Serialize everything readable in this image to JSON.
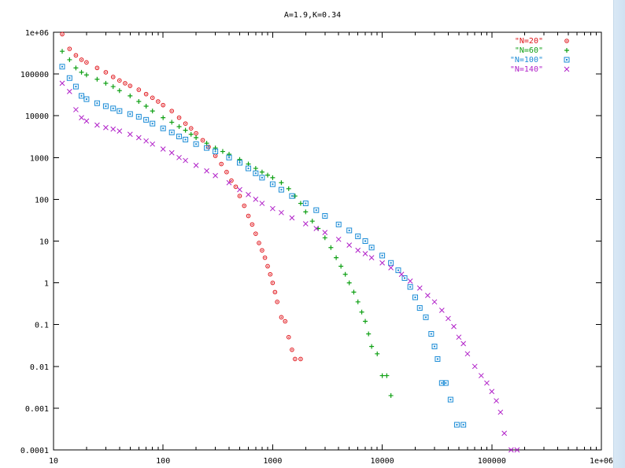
{
  "chart_data": {
    "type": "scatter",
    "title": "A=1.9,K=0.34",
    "xlabel": "",
    "ylabel": "",
    "xscale": "log",
    "yscale": "log",
    "xlim": [
      10,
      1000000
    ],
    "ylim": [
      0.0001,
      1000000
    ],
    "x_ticks": [
      {
        "value": 10,
        "label": "10"
      },
      {
        "value": 100,
        "label": "100"
      },
      {
        "value": 1000,
        "label": "1000"
      },
      {
        "value": 10000,
        "label": "10000"
      },
      {
        "value": 100000,
        "label": "100000"
      },
      {
        "value": 1000000,
        "label": "1e+06"
      }
    ],
    "y_ticks": [
      {
        "value": 1000000,
        "label": "1e+06"
      },
      {
        "value": 100000,
        "label": "100000"
      },
      {
        "value": 10000,
        "label": "10000"
      },
      {
        "value": 1000,
        "label": "1000"
      },
      {
        "value": 100,
        "label": "100"
      },
      {
        "value": 10,
        "label": "10"
      },
      {
        "value": 1,
        "label": "1"
      },
      {
        "value": 0.1,
        "label": "0.1"
      },
      {
        "value": 0.01,
        "label": "0.01"
      },
      {
        "value": 0.001,
        "label": "0.001"
      },
      {
        "value": 0.0001,
        "label": "0.0001"
      }
    ],
    "grid": false,
    "legend_position": "top-right",
    "series": [
      {
        "name": "\"N=20\"",
        "marker": "diamond",
        "color": "#e0141a",
        "points": [
          [
            12,
            900000
          ],
          [
            14,
            400000
          ],
          [
            16,
            280000
          ],
          [
            18,
            220000
          ],
          [
            20,
            190000
          ],
          [
            25,
            140000
          ],
          [
            30,
            110000
          ],
          [
            35,
            85000
          ],
          [
            40,
            70000
          ],
          [
            45,
            60000
          ],
          [
            50,
            52000
          ],
          [
            60,
            42000
          ],
          [
            70,
            33000
          ],
          [
            80,
            27000
          ],
          [
            90,
            22000
          ],
          [
            100,
            18000
          ],
          [
            120,
            13000
          ],
          [
            140,
            9000
          ],
          [
            160,
            6500
          ],
          [
            180,
            5000
          ],
          [
            200,
            3800
          ],
          [
            230,
            2600
          ],
          [
            260,
            1800
          ],
          [
            300,
            1100
          ],
          [
            340,
            700
          ],
          [
            380,
            450
          ],
          [
            420,
            280
          ],
          [
            460,
            200
          ],
          [
            500,
            120
          ],
          [
            550,
            70
          ],
          [
            600,
            40
          ],
          [
            650,
            25
          ],
          [
            700,
            15
          ],
          [
            750,
            9
          ],
          [
            800,
            6
          ],
          [
            850,
            4
          ],
          [
            900,
            2.5
          ],
          [
            950,
            1.6
          ],
          [
            1000,
            1
          ],
          [
            1050,
            0.6
          ],
          [
            1100,
            0.35
          ],
          [
            1200,
            0.15
          ],
          [
            1300,
            0.12
          ],
          [
            1400,
            0.05
          ],
          [
            1500,
            0.025
          ],
          [
            1600,
            0.015
          ],
          [
            1800,
            0.015
          ]
        ]
      },
      {
        "name": "\"N=60\"",
        "marker": "plus",
        "color": "#0fa014",
        "points": [
          [
            12,
            350000
          ],
          [
            14,
            220000
          ],
          [
            16,
            140000
          ],
          [
            18,
            110000
          ],
          [
            20,
            95000
          ],
          [
            25,
            75000
          ],
          [
            30,
            60000
          ],
          [
            35,
            50000
          ],
          [
            40,
            40000
          ],
          [
            50,
            30000
          ],
          [
            60,
            22000
          ],
          [
            70,
            17000
          ],
          [
            80,
            13000
          ],
          [
            100,
            9000
          ],
          [
            120,
            7000
          ],
          [
            140,
            5500
          ],
          [
            160,
            4500
          ],
          [
            180,
            3600
          ],
          [
            200,
            3000
          ],
          [
            250,
            2200
          ],
          [
            300,
            1700
          ],
          [
            350,
            1400
          ],
          [
            400,
            1200
          ],
          [
            500,
            900
          ],
          [
            600,
            700
          ],
          [
            700,
            550
          ],
          [
            800,
            450
          ],
          [
            900,
            380
          ],
          [
            1000,
            330
          ],
          [
            1200,
            250
          ],
          [
            1400,
            180
          ],
          [
            1600,
            120
          ],
          [
            1800,
            80
          ],
          [
            2000,
            50
          ],
          [
            2300,
            30
          ],
          [
            2600,
            20
          ],
          [
            3000,
            12
          ],
          [
            3400,
            7
          ],
          [
            3800,
            4
          ],
          [
            4200,
            2.5
          ],
          [
            4600,
            1.6
          ],
          [
            5000,
            1
          ],
          [
            5500,
            0.6
          ],
          [
            6000,
            0.35
          ],
          [
            6500,
            0.2
          ],
          [
            7000,
            0.12
          ],
          [
            7500,
            0.06
          ],
          [
            8000,
            0.03
          ],
          [
            9000,
            0.02
          ],
          [
            10000,
            0.006
          ],
          [
            11000,
            0.006
          ],
          [
            12000,
            0.002
          ]
        ]
      },
      {
        "name": "\"N=100\"",
        "marker": "square",
        "color": "#1a8bd6",
        "points": [
          [
            12,
            150000
          ],
          [
            14,
            80000
          ],
          [
            16,
            50000
          ],
          [
            18,
            30000
          ],
          [
            20,
            25000
          ],
          [
            25,
            20000
          ],
          [
            30,
            17000
          ],
          [
            35,
            15000
          ],
          [
            40,
            13000
          ],
          [
            50,
            11000
          ],
          [
            60,
            9500
          ],
          [
            70,
            8000
          ],
          [
            80,
            6500
          ],
          [
            100,
            5000
          ],
          [
            120,
            4000
          ],
          [
            140,
            3200
          ],
          [
            160,
            2700
          ],
          [
            200,
            2100
          ],
          [
            250,
            1700
          ],
          [
            300,
            1400
          ],
          [
            400,
            1000
          ],
          [
            500,
            750
          ],
          [
            600,
            550
          ],
          [
            700,
            420
          ],
          [
            800,
            330
          ],
          [
            1000,
            230
          ],
          [
            1200,
            170
          ],
          [
            1500,
            120
          ],
          [
            2000,
            80
          ],
          [
            2500,
            55
          ],
          [
            3000,
            40
          ],
          [
            4000,
            25
          ],
          [
            5000,
            18
          ],
          [
            6000,
            13
          ],
          [
            7000,
            10
          ],
          [
            8000,
            7
          ],
          [
            10000,
            4.5
          ],
          [
            12000,
            3
          ],
          [
            14000,
            2
          ],
          [
            16000,
            1.3
          ],
          [
            18000,
            0.8
          ],
          [
            20000,
            0.45
          ],
          [
            22000,
            0.25
          ],
          [
            25000,
            0.15
          ],
          [
            28000,
            0.06
          ],
          [
            30000,
            0.03
          ],
          [
            32000,
            0.015
          ],
          [
            35000,
            0.004
          ],
          [
            38000,
            0.004
          ],
          [
            42000,
            0.0016
          ],
          [
            48000,
            0.0004
          ],
          [
            55000,
            0.0004
          ]
        ]
      },
      {
        "name": "\"N=140\"",
        "marker": "x",
        "color": "#b01fc8",
        "points": [
          [
            12,
            60000
          ],
          [
            14,
            38000
          ],
          [
            16,
            14000
          ],
          [
            18,
            9000
          ],
          [
            20,
            7500
          ],
          [
            25,
            6000
          ],
          [
            30,
            5200
          ],
          [
            35,
            4800
          ],
          [
            40,
            4300
          ],
          [
            50,
            3600
          ],
          [
            60,
            3000
          ],
          [
            70,
            2500
          ],
          [
            80,
            2100
          ],
          [
            100,
            1600
          ],
          [
            120,
            1300
          ],
          [
            140,
            1000
          ],
          [
            160,
            850
          ],
          [
            200,
            650
          ],
          [
            250,
            480
          ],
          [
            300,
            370
          ],
          [
            400,
            250
          ],
          [
            500,
            170
          ],
          [
            600,
            130
          ],
          [
            700,
            100
          ],
          [
            800,
            80
          ],
          [
            1000,
            60
          ],
          [
            1200,
            48
          ],
          [
            1500,
            36
          ],
          [
            2000,
            26
          ],
          [
            2500,
            20
          ],
          [
            3000,
            16
          ],
          [
            4000,
            11
          ],
          [
            5000,
            8
          ],
          [
            6000,
            6
          ],
          [
            7000,
            5
          ],
          [
            8000,
            4
          ],
          [
            10000,
            3
          ],
          [
            12000,
            2.3
          ],
          [
            15000,
            1.6
          ],
          [
            18000,
            1.1
          ],
          [
            22000,
            0.75
          ],
          [
            26000,
            0.5
          ],
          [
            30000,
            0.35
          ],
          [
            35000,
            0.22
          ],
          [
            40000,
            0.14
          ],
          [
            45000,
            0.09
          ],
          [
            50000,
            0.05
          ],
          [
            55000,
            0.035
          ],
          [
            60000,
            0.02
          ],
          [
            70000,
            0.01
          ],
          [
            80000,
            0.006
          ],
          [
            90000,
            0.004
          ],
          [
            100000,
            0.0025
          ],
          [
            110000,
            0.0015
          ],
          [
            120000,
            0.0008
          ],
          [
            130000,
            0.00025
          ],
          [
            150000,
            0.0001
          ],
          [
            170000,
            0.0001
          ]
        ]
      }
    ]
  }
}
